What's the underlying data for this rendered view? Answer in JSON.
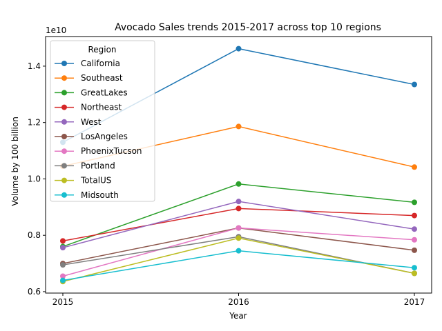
{
  "chart_data": {
    "type": "line",
    "title": "Avocado Sales trends 2015-2017 across top 10 regions",
    "xlabel": "Year",
    "ylabel": "Volume by 100 billion",
    "y_offset_label": "1e10",
    "categories": [
      "2015",
      "2016",
      "2017"
    ],
    "ylim": [
      0.595,
      1.505
    ],
    "yticks": [
      0.6,
      0.8,
      1.0,
      1.2,
      1.4
    ],
    "ytick_labels": [
      "0.6",
      "0.8",
      "1.0",
      "1.2",
      "1.4"
    ],
    "grid": false,
    "legend_title": "Region",
    "legend_position": "upper-left",
    "series": [
      {
        "name": "California",
        "color": "#1f77b4",
        "values": [
          1.13,
          1.462,
          1.335
        ]
      },
      {
        "name": "Southeast",
        "color": "#ff7f0e",
        "values": [
          1.045,
          1.186,
          1.042
        ]
      },
      {
        "name": "GreatLakes",
        "color": "#2ca02c",
        "values": [
          0.76,
          0.982,
          0.917
        ]
      },
      {
        "name": "Northeast",
        "color": "#d62728",
        "values": [
          0.78,
          0.895,
          0.87
        ]
      },
      {
        "name": "West",
        "color": "#9467bd",
        "values": [
          0.756,
          0.92,
          0.822
        ]
      },
      {
        "name": "LosAngeles",
        "color": "#8c564b",
        "values": [
          0.7,
          0.826,
          0.747
        ]
      },
      {
        "name": "PhoenixTucson",
        "color": "#e377c2",
        "values": [
          0.655,
          0.826,
          0.784
        ]
      },
      {
        "name": "Portland",
        "color": "#7f7f7f",
        "values": [
          0.695,
          0.795,
          0.665
        ]
      },
      {
        "name": "TotalUS",
        "color": "#bcbd22",
        "values": [
          0.636,
          0.79,
          0.665
        ]
      },
      {
        "name": "Midsouth",
        "color": "#17becf",
        "values": [
          0.64,
          0.745,
          0.685
        ]
      }
    ]
  }
}
